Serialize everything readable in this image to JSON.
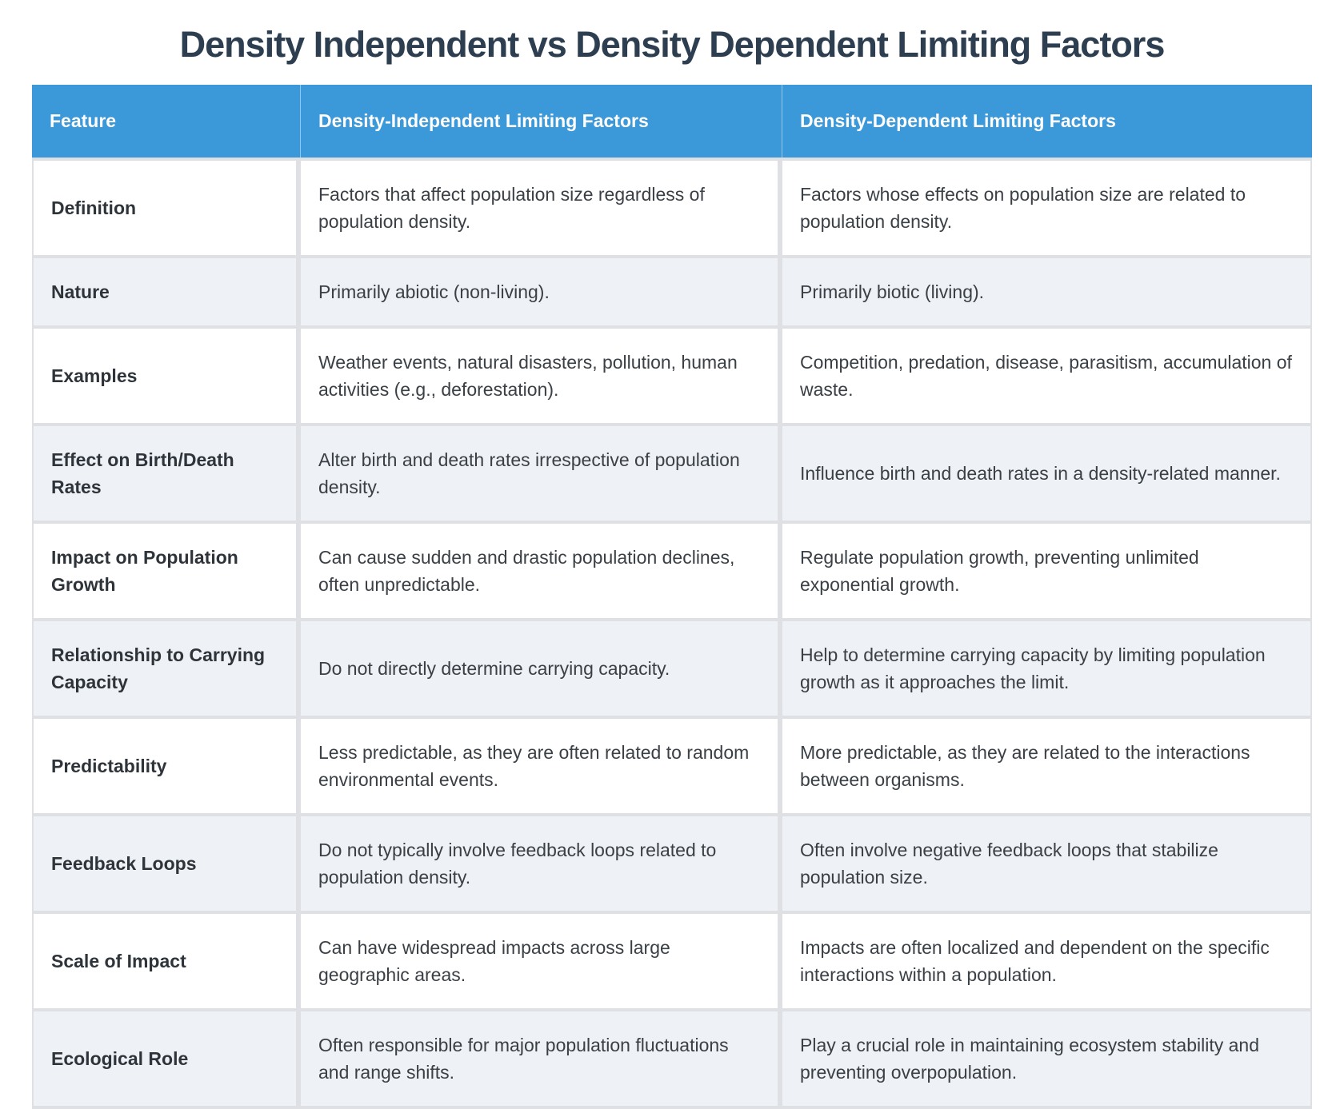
{
  "page": {
    "title": "Density Independent vs Density Dependent Limiting Factors"
  },
  "table": {
    "headers": [
      "Feature",
      "Density-Independent Limiting Factors",
      "Density-Dependent Limiting Factors"
    ],
    "rows": [
      {
        "feature": "Definition",
        "independent": "Factors that affect population size regardless of population density.",
        "dependent": "Factors whose effects on population size are related to population density."
      },
      {
        "feature": "Nature",
        "independent": "Primarily abiotic (non-living).",
        "dependent": "Primarily biotic (living)."
      },
      {
        "feature": "Examples",
        "independent": "Weather events, natural disasters, pollution, human activities (e.g., deforestation).",
        "dependent": "Competition, predation, disease, parasitism, accumulation of waste."
      },
      {
        "feature": "Effect on Birth/Death Rates",
        "independent": "Alter birth and death rates irrespective of population density.",
        "dependent": "Influence birth and death rates in a density-related manner."
      },
      {
        "feature": "Impact on Population Growth",
        "independent": "Can cause sudden and drastic population declines, often unpredictable.",
        "dependent": "Regulate population growth, preventing unlimited exponential growth."
      },
      {
        "feature": "Relationship to Carrying Capacity",
        "independent": "Do not directly determine carrying capacity.",
        "dependent": "Help to determine carrying capacity by limiting population growth as it approaches the limit."
      },
      {
        "feature": "Predictability",
        "independent": "Less predictable, as they are often related to random environmental events.",
        "dependent": "More predictable, as they are related to the interactions between organisms."
      },
      {
        "feature": "Feedback Loops",
        "independent": "Do not typically involve feedback loops related to population density.",
        "dependent": "Often involve negative feedback loops that stabilize population size."
      },
      {
        "feature": "Scale of Impact",
        "independent": "Can have widespread impacts across large geographic areas.",
        "dependent": "Impacts are often localized and dependent on the specific interactions within a population."
      },
      {
        "feature": "Ecological Role",
        "independent": "Often responsible for major population fluctuations and range shifts.",
        "dependent": "Play a crucial role in maintaining ecosystem stability and preventing overpopulation."
      }
    ]
  },
  "colors": {
    "header_bg": "#3b98d9",
    "title": "#2c3e50",
    "even_row_bg": "#eef1f6",
    "border": "#dfe0e3",
    "body_text": "#3a4045"
  }
}
